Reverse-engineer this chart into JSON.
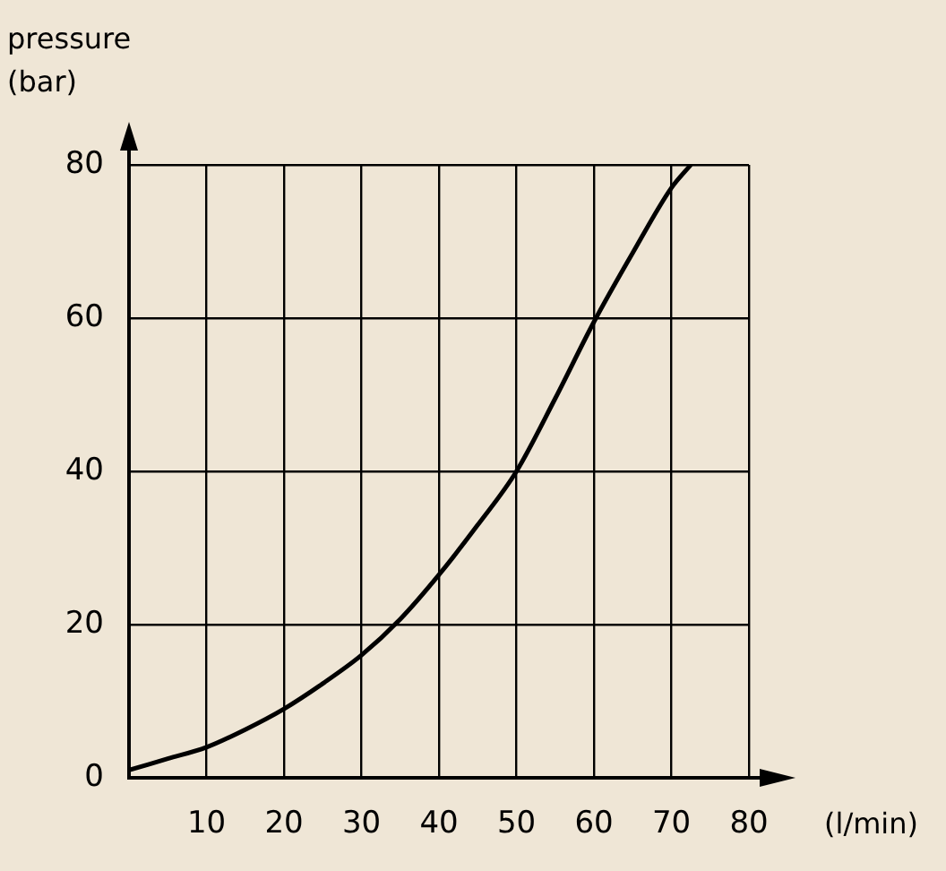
{
  "chart_data": {
    "type": "line",
    "xlabel": "(l/min)",
    "ylabel": "pressure (bar)",
    "x": [
      0,
      5,
      10,
      15,
      20,
      25,
      30,
      35,
      40,
      45,
      50,
      55,
      60,
      65,
      70,
      72.5
    ],
    "series": [
      {
        "color": "#000000",
        "values": [
          1,
          2.5,
          4,
          6.3,
          9,
          12.3,
          16,
          20.7,
          26.5,
          33,
          40,
          49.5,
          59.5,
          68.5,
          77,
          80
        ]
      }
    ],
    "xlim": [
      0,
      80
    ],
    "xticks": [
      {
        "value": 0,
        "label": null
      },
      10,
      20,
      30,
      40,
      50,
      60,
      70,
      80
    ],
    "ylim": [
      0,
      80
    ],
    "yticks": [
      0,
      20,
      40,
      60,
      80
    ],
    "grid": true,
    "legend": false,
    "marker": "none",
    "line_style": "solid"
  }
}
